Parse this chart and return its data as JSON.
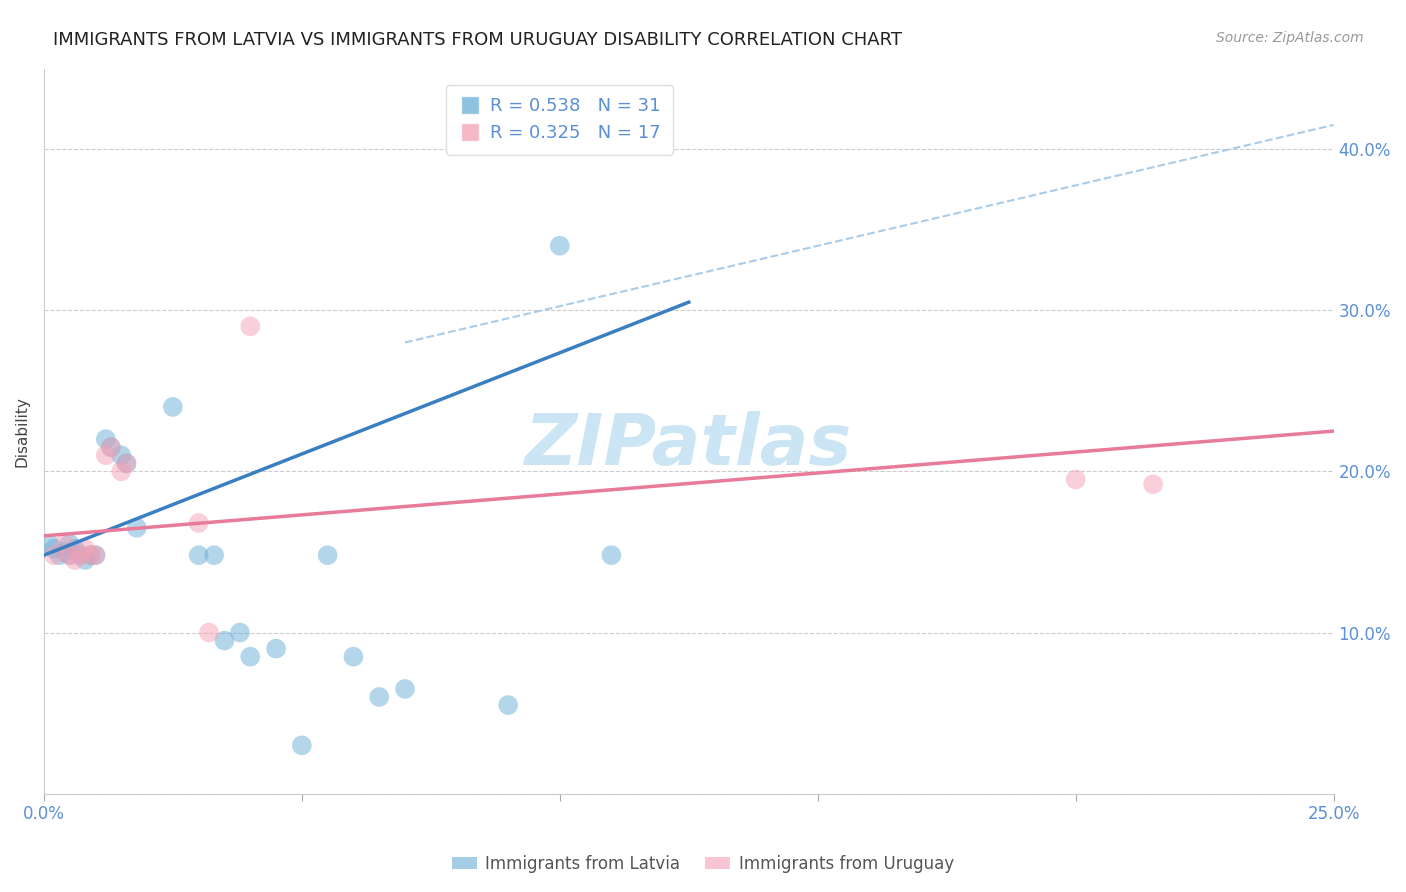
{
  "title": "IMMIGRANTS FROM LATVIA VS IMMIGRANTS FROM URUGUAY DISABILITY CORRELATION CHART",
  "source": "Source: ZipAtlas.com",
  "ylabel": "Disability",
  "xlabel": "",
  "xlim": [
    0.0,
    0.25
  ],
  "ylim": [
    0.0,
    0.45
  ],
  "ytick_values": [
    0.0,
    0.1,
    0.2,
    0.3,
    0.4
  ],
  "ytick_labels": [
    "",
    "10.0%",
    "20.0%",
    "30.0%",
    "40.0%"
  ],
  "xtick_values": [
    0.0,
    0.05,
    0.1,
    0.15,
    0.2,
    0.25
  ],
  "xtick_labels": [
    "0.0%",
    "",
    "",
    "",
    "",
    "25.0%"
  ],
  "watermark": "ZIPatlas",
  "legend_blue_r": "0.538",
  "legend_blue_n": "31",
  "legend_pink_r": "0.325",
  "legend_pink_n": "17",
  "legend_blue_label": "Immigrants from Latvia",
  "legend_pink_label": "Immigrants from Uruguay",
  "blue_color": "#6aaed6",
  "pink_color": "#f4a0b5",
  "blue_scatter": [
    [
      0.001,
      0.155
    ],
    [
      0.002,
      0.152
    ],
    [
      0.003,
      0.148
    ],
    [
      0.004,
      0.15
    ],
    [
      0.005,
      0.155
    ],
    [
      0.005,
      0.148
    ],
    [
      0.006,
      0.152
    ],
    [
      0.007,
      0.148
    ],
    [
      0.008,
      0.145
    ],
    [
      0.009,
      0.148
    ],
    [
      0.01,
      0.148
    ],
    [
      0.012,
      0.22
    ],
    [
      0.013,
      0.215
    ],
    [
      0.015,
      0.21
    ],
    [
      0.016,
      0.205
    ],
    [
      0.018,
      0.165
    ],
    [
      0.025,
      0.24
    ],
    [
      0.03,
      0.148
    ],
    [
      0.033,
      0.148
    ],
    [
      0.035,
      0.095
    ],
    [
      0.038,
      0.1
    ],
    [
      0.04,
      0.085
    ],
    [
      0.045,
      0.09
    ],
    [
      0.055,
      0.148
    ],
    [
      0.06,
      0.085
    ],
    [
      0.065,
      0.06
    ],
    [
      0.07,
      0.065
    ],
    [
      0.09,
      0.055
    ],
    [
      0.1,
      0.34
    ],
    [
      0.11,
      0.148
    ],
    [
      0.05,
      0.03
    ]
  ],
  "pink_scatter": [
    [
      0.002,
      0.148
    ],
    [
      0.004,
      0.155
    ],
    [
      0.005,
      0.148
    ],
    [
      0.006,
      0.145
    ],
    [
      0.007,
      0.148
    ],
    [
      0.008,
      0.152
    ],
    [
      0.009,
      0.148
    ],
    [
      0.01,
      0.148
    ],
    [
      0.012,
      0.21
    ],
    [
      0.013,
      0.215
    ],
    [
      0.015,
      0.2
    ],
    [
      0.016,
      0.205
    ],
    [
      0.03,
      0.168
    ],
    [
      0.032,
      0.1
    ],
    [
      0.04,
      0.29
    ],
    [
      0.2,
      0.195
    ],
    [
      0.215,
      0.192
    ]
  ],
  "blue_line_x": [
    0.0,
    0.125
  ],
  "blue_line_y": [
    0.148,
    0.305
  ],
  "pink_line_x": [
    0.0,
    0.25
  ],
  "pink_line_y": [
    0.16,
    0.225
  ],
  "dashed_line_x": [
    0.07,
    0.25
  ],
  "dashed_line_y": [
    0.28,
    0.415
  ],
  "title_fontsize": 13,
  "axis_label_fontsize": 11,
  "tick_label_color": "#5b8fd6",
  "tick_label_fontsize": 12,
  "watermark_color": "#cce5f5",
  "watermark_fontsize": 52,
  "background_color": "#ffffff",
  "grid_color": "#cccccc",
  "grid_style": "--",
  "blue_line_color": "#3a7fc1",
  "pink_line_color": "#e87a9a",
  "dashed_line_color": "#aacce8"
}
